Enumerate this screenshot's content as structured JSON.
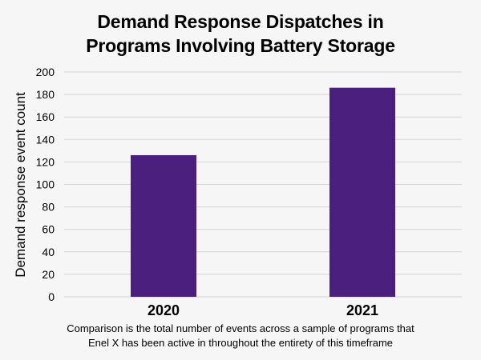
{
  "title_lines": [
    "Demand Response Dispatches in",
    "Programs Involving Battery Storage"
  ],
  "caption_lines": [
    "Comparison is the total number of events across a sample of programs that",
    "Enel X has been active in throughout the entirety of this timeframe"
  ],
  "colors": {
    "bar": "#4a1f7d",
    "grid": "#d3d3d3",
    "background": "#f6f6f6"
  },
  "chart_data": {
    "type": "bar",
    "title": "Demand Response Dispatches in Programs Involving Battery Storage",
    "xlabel": "",
    "ylabel": "Demand response event count",
    "categories": [
      "2020",
      "2021"
    ],
    "values": [
      126,
      186
    ],
    "ylim": [
      0,
      200
    ],
    "yticks": [
      "0",
      "20",
      "40",
      "60",
      "80",
      "100",
      "120",
      "140",
      "160",
      "180",
      "200"
    ],
    "grid": true,
    "legend": "none"
  }
}
